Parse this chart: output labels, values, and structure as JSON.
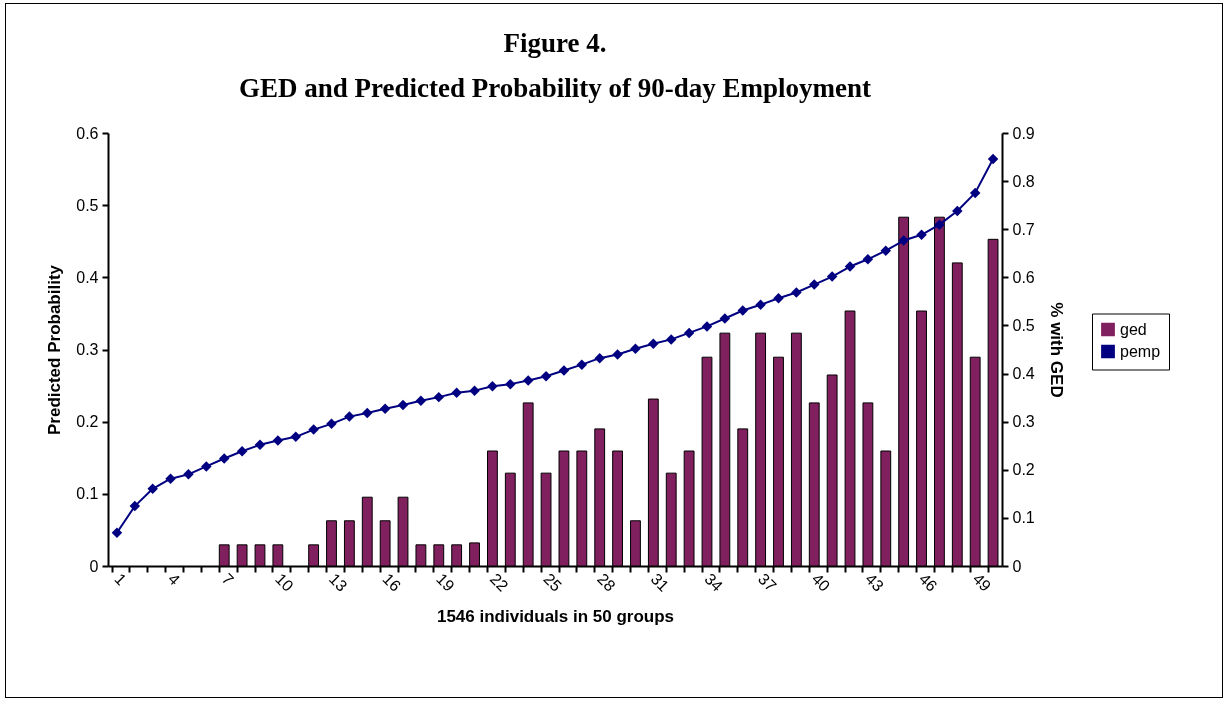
{
  "chart_data": {
    "type": "bar",
    "title": "Figure 4.",
    "subtitle": "GED and Predicted Probability of 90-day Employment",
    "xlabel": "1546 individuals in 50 groups",
    "ylabel": "Predicted Probability",
    "y2label": "% with GED",
    "categories": [
      "1",
      null,
      null,
      "4",
      null,
      null,
      "7",
      null,
      null,
      "10",
      null,
      null,
      "13",
      null,
      null,
      "16",
      null,
      null,
      "19",
      null,
      null,
      "22",
      null,
      null,
      "25",
      null,
      null,
      "28",
      null,
      null,
      "31",
      null,
      null,
      "34",
      null,
      null,
      "37",
      null,
      null,
      "40",
      null,
      null,
      "43",
      null,
      null,
      "46",
      null,
      null,
      "49",
      null
    ],
    "ylim": [
      0,
      0.6
    ],
    "yticks": [
      0,
      0.1,
      0.2,
      0.3,
      0.4,
      0.5,
      0.6
    ],
    "y2lim": [
      0,
      0.9
    ],
    "y2ticks": [
      0,
      0.1,
      0.2,
      0.3,
      0.4,
      0.5,
      0.6,
      0.7,
      0.8,
      0.9
    ],
    "legend": "right",
    "marker": "diamond",
    "series": [
      {
        "name": "ged",
        "axis": "y2",
        "color": "#80205f",
        "values": [
          null,
          null,
          null,
          null,
          null,
          null,
          0.044,
          0.044,
          0.044,
          0.044,
          null,
          0.044,
          0.094,
          0.094,
          0.143,
          0.094,
          0.143,
          0.044,
          0.044,
          0.044,
          0.048,
          0.239,
          0.193,
          0.339,
          0.193,
          0.239,
          0.239,
          0.285,
          0.239,
          0.094,
          0.347,
          0.193,
          0.239,
          0.434,
          0.484,
          0.285,
          0.484,
          0.434,
          0.484,
          0.339,
          0.397,
          0.53,
          0.339,
          0.239,
          0.725,
          0.53,
          0.725,
          0.63,
          0.434,
          0.679
        ]
      },
      {
        "name": "pemp",
        "type": "line",
        "color": "#000080",
        "values": [
          0.046,
          0.083,
          0.107,
          0.121,
          0.127,
          0.138,
          0.149,
          0.159,
          0.168,
          0.174,
          0.179,
          0.189,
          0.197,
          0.207,
          0.212,
          0.218,
          0.223,
          0.229,
          0.234,
          0.24,
          0.243,
          0.249,
          0.252,
          0.257,
          0.263,
          0.271,
          0.279,
          0.288,
          0.293,
          0.301,
          0.308,
          0.314,
          0.323,
          0.332,
          0.343,
          0.354,
          0.362,
          0.371,
          0.379,
          0.39,
          0.401,
          0.415,
          0.425,
          0.437,
          0.451,
          0.459,
          0.473,
          0.492,
          0.517,
          0.564
        ]
      }
    ]
  }
}
